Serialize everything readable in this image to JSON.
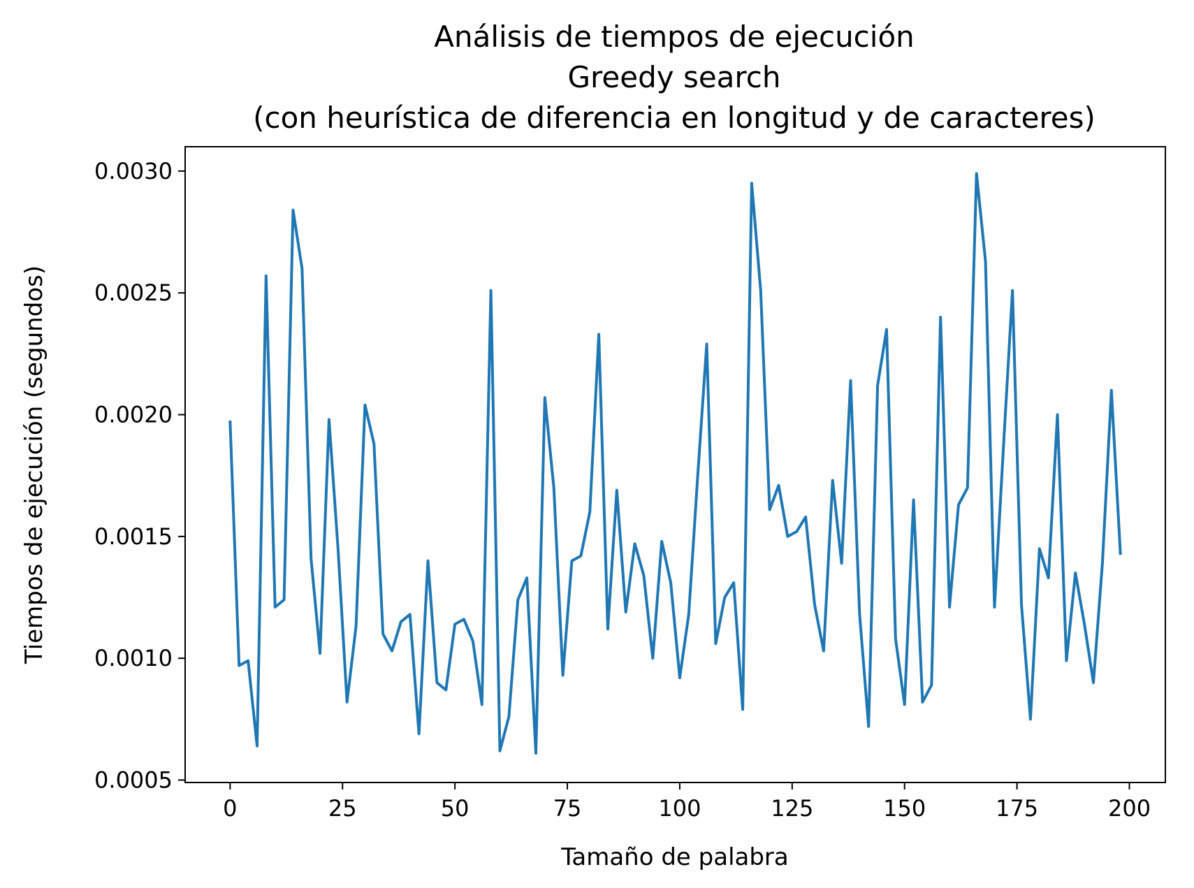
{
  "chart_data": {
    "type": "line",
    "title_lines": [
      "Análisis de tiempos de ejecución",
      "Greedy search",
      "(con heurística de diferencia en longitud y de caracteres)"
    ],
    "xlabel": "Tamaño de palabra",
    "ylabel": "Tiempos de ejecución (segundos)",
    "xlim": [
      -10,
      208
    ],
    "ylim": [
      0.00049,
      0.0031
    ],
    "xticks": [
      0,
      25,
      50,
      75,
      100,
      125,
      150,
      175,
      200
    ],
    "xtick_labels": [
      "0",
      "25",
      "50",
      "75",
      "100",
      "125",
      "150",
      "175",
      "200"
    ],
    "yticks": [
      0.0005,
      0.001,
      0.0015,
      0.002,
      0.0025,
      0.003
    ],
    "ytick_labels": [
      "0.0005",
      "0.0010",
      "0.0015",
      "0.0020",
      "0.0025",
      "0.0030"
    ],
    "grid": false,
    "line_color": "#1f77b4",
    "series": [
      {
        "x": [
          0,
          2,
          4,
          6,
          8,
          10,
          12,
          14,
          16,
          18,
          20,
          22,
          24,
          26,
          28,
          30,
          32,
          34,
          36,
          38,
          40,
          42,
          44,
          46,
          48,
          50,
          52,
          54,
          56,
          58,
          60,
          62,
          64,
          66,
          68,
          70,
          72,
          74,
          76,
          78,
          80,
          82,
          84,
          86,
          88,
          90,
          92,
          94,
          96,
          98,
          100,
          102,
          104,
          106,
          108,
          110,
          112,
          114,
          116,
          118,
          120,
          122,
          124,
          126,
          128,
          130,
          132,
          134,
          136,
          138,
          140,
          142,
          144,
          146,
          148,
          150,
          152,
          154,
          156,
          158,
          160,
          162,
          164,
          166,
          168,
          170,
          172,
          174,
          176,
          178,
          180,
          182,
          184,
          186,
          188,
          190,
          192,
          194,
          196,
          198
        ],
        "values": [
          0.00197,
          0.00097,
          0.00099,
          0.00064,
          0.00257,
          0.00121,
          0.00124,
          0.00284,
          0.0026,
          0.00141,
          0.00102,
          0.00198,
          0.00145,
          0.00082,
          0.00113,
          0.00204,
          0.00188,
          0.0011,
          0.00103,
          0.00115,
          0.00118,
          0.00069,
          0.0014,
          0.0009,
          0.00087,
          0.00114,
          0.00116,
          0.00107,
          0.00081,
          0.00251,
          0.00062,
          0.00076,
          0.00124,
          0.00133,
          0.00061,
          0.00207,
          0.0017,
          0.00093,
          0.0014,
          0.00142,
          0.0016,
          0.00233,
          0.00112,
          0.00169,
          0.00119,
          0.00147,
          0.00134,
          0.001,
          0.00148,
          0.00131,
          0.00092,
          0.00118,
          0.00175,
          0.00229,
          0.00106,
          0.00125,
          0.00131,
          0.00079,
          0.00295,
          0.00251,
          0.00161,
          0.00171,
          0.0015,
          0.00152,
          0.00158,
          0.00122,
          0.00103,
          0.00173,
          0.00139,
          0.00214,
          0.00118,
          0.00072,
          0.00212,
          0.00235,
          0.00108,
          0.00081,
          0.00165,
          0.00082,
          0.00089,
          0.0024,
          0.00121,
          0.00163,
          0.0017,
          0.00299,
          0.00263,
          0.00121,
          0.00187,
          0.00251,
          0.00122,
          0.00075,
          0.00145,
          0.00133,
          0.002,
          0.00099,
          0.00135,
          0.00114,
          0.0009,
          0.00139,
          0.0021,
          0.00143
        ]
      }
    ]
  }
}
